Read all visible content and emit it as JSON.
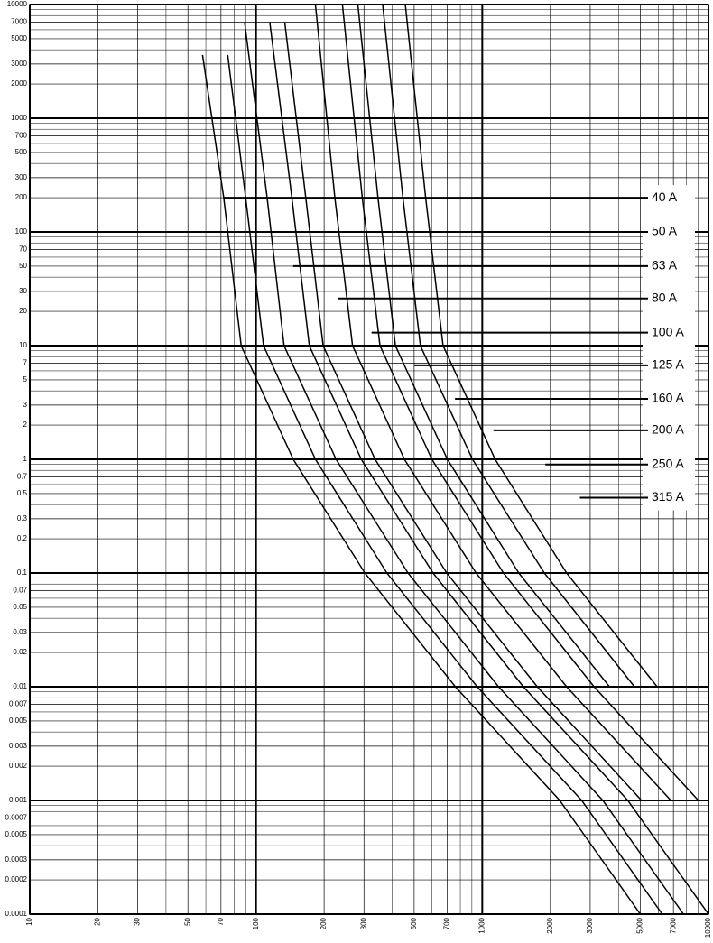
{
  "chart_data": {
    "type": "line",
    "xscale": "log",
    "yscale": "log",
    "grid": true,
    "color": "#000000",
    "xlim": [
      10,
      10000
    ],
    "ylim": [
      0.0001,
      10000
    ],
    "xticks": [
      10,
      20,
      30,
      50,
      70,
      100,
      200,
      300,
      500,
      700,
      1000,
      2000,
      3000,
      5000,
      7000,
      10000
    ],
    "yticks": [
      0.0001,
      0.0002,
      0.0003,
      0.0005,
      0.0007,
      0.001,
      0.002,
      0.003,
      0.005,
      0.007,
      0.01,
      0.02,
      0.03,
      0.05,
      0.07,
      0.1,
      0.2,
      0.3,
      0.5,
      0.7,
      1,
      2,
      3,
      5,
      7,
      10,
      20,
      30,
      50,
      70,
      100,
      200,
      300,
      500,
      700,
      1000,
      2000,
      3000,
      5000,
      7000,
      10000
    ],
    "series": [
      {
        "name": "40 A",
        "label_x": 72,
        "label_y": 200,
        "x": [
          58,
          72,
          86,
          146,
          303,
          760,
          2200,
          5000
        ],
        "values": [
          3600,
          200,
          10,
          1,
          0.1,
          0.01,
          0.001,
          0.0001
        ]
      },
      {
        "name": "50 A",
        "label_x": 103,
        "label_y": 100,
        "x": [
          75,
          90,
          108,
          183,
          379,
          950,
          2750,
          6250
        ],
        "values": [
          3600,
          200,
          10,
          1,
          0.1,
          0.01,
          0.001,
          0.0001
        ]
      },
      {
        "name": "63 A",
        "label_x": 146,
        "label_y": 50,
        "x": [
          89,
          112,
          133,
          226,
          470,
          1180,
          3410,
          7750
        ],
        "values": [
          7000,
          200,
          10,
          1,
          0.1,
          0.01,
          0.001,
          0.0001
        ]
      },
      {
        "name": "80 A",
        "label_x": 231,
        "label_y": 26,
        "x": [
          115,
          144,
          172,
          292,
          606,
          1520,
          4400,
          10000
        ],
        "values": [
          7000,
          200,
          10,
          1,
          0.1,
          0.01,
          0.001,
          0.0001
        ]
      },
      {
        "name": "100 A",
        "label_x": 324,
        "label_y": 13,
        "x": [
          134,
          166,
          198,
          336,
          697,
          1750,
          5060
        ],
        "values": [
          7000,
          200,
          10,
          1,
          0.1,
          0.01,
          0.001
        ]
      },
      {
        "name": "125 A",
        "label_x": 500,
        "label_y": 6.7,
        "x": [
          183,
          223,
          267,
          453,
          939,
          2360,
          6820
        ],
        "values": [
          10000,
          200,
          10,
          1,
          0.1,
          0.01,
          0.001
        ]
      },
      {
        "name": "160 A",
        "label_x": 758,
        "label_y": 3.4,
        "x": [
          241,
          295,
          353,
          599,
          1240,
          3120,
          9020
        ],
        "values": [
          10000,
          200,
          10,
          1,
          0.1,
          0.01,
          0.001
        ]
      },
      {
        "name": "200 A",
        "label_x": 1120,
        "label_y": 1.8,
        "x": [
          282,
          346,
          413,
          701,
          1450,
          3650
        ],
        "values": [
          10000,
          200,
          10,
          1,
          0.1,
          0.01
        ]
      },
      {
        "name": "250 A",
        "label_x": 1900,
        "label_y": 0.9,
        "x": [
          363,
          446,
          533,
          905,
          1880,
          4710
        ],
        "values": [
          10000,
          200,
          10,
          1,
          0.1,
          0.01
        ]
      },
      {
        "name": "315 A",
        "label_x": 2700,
        "label_y": 0.46,
        "x": [
          457,
          562,
          671,
          1140,
          2360,
          5930
        ],
        "values": [
          10000,
          200,
          10,
          1,
          0.1,
          0.01
        ]
      }
    ]
  }
}
